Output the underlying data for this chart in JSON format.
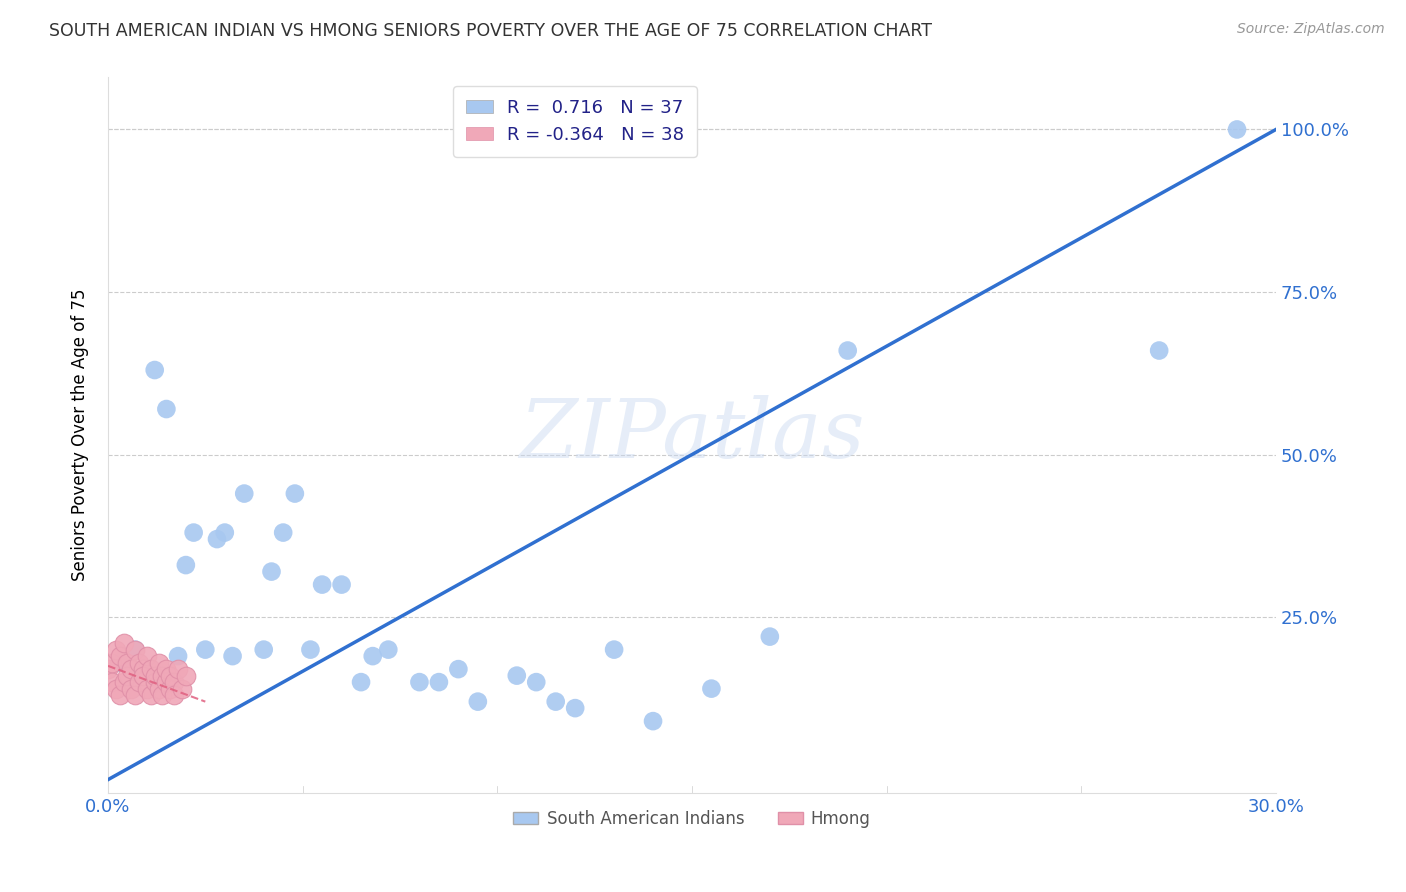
{
  "title": "SOUTH AMERICAN INDIAN VS HMONG SENIORS POVERTY OVER THE AGE OF 75 CORRELATION CHART",
  "source": "Source: ZipAtlas.com",
  "ylabel": "Seniors Poverty Over the Age of 75",
  "xlim": [
    0.0,
    0.3
  ],
  "ylim": [
    -0.02,
    1.08
  ],
  "xticks": [
    0.0,
    0.05,
    0.1,
    0.15,
    0.2,
    0.25,
    0.3
  ],
  "xticklabels": [
    "0.0%",
    "",
    "",
    "",
    "",
    "",
    "30.0%"
  ],
  "ytick_positions": [
    0.0,
    0.25,
    0.5,
    0.75,
    1.0
  ],
  "ytick_labels_right": [
    "",
    "25.0%",
    "50.0%",
    "75.0%",
    "100.0%"
  ],
  "watermark": "ZIPatlas",
  "legend_r1": "R =  0.716   N = 37",
  "legend_r2": "R = -0.364   N = 38",
  "blue_color": "#a8c8f0",
  "pink_color": "#f0a8b8",
  "blue_line_color": "#3070d0",
  "pink_line_color": "#e06080",
  "grid_color": "#cccccc",
  "title_color": "#333333",
  "axis_tick_color": "#3070d0",
  "south_american_x": [
    0.003,
    0.007,
    0.012,
    0.015,
    0.018,
    0.02,
    0.022,
    0.025,
    0.028,
    0.03,
    0.032,
    0.035,
    0.04,
    0.042,
    0.045,
    0.048,
    0.052,
    0.055,
    0.06,
    0.065,
    0.068,
    0.072,
    0.08,
    0.085,
    0.09,
    0.095,
    0.105,
    0.11,
    0.115,
    0.12,
    0.13,
    0.14,
    0.155,
    0.17,
    0.19,
    0.27,
    0.29
  ],
  "south_american_y": [
    0.18,
    0.2,
    0.63,
    0.57,
    0.19,
    0.33,
    0.38,
    0.2,
    0.37,
    0.38,
    0.19,
    0.44,
    0.2,
    0.32,
    0.38,
    0.44,
    0.2,
    0.3,
    0.3,
    0.15,
    0.19,
    0.2,
    0.15,
    0.15,
    0.17,
    0.12,
    0.16,
    0.15,
    0.12,
    0.11,
    0.2,
    0.09,
    0.14,
    0.22,
    0.66,
    0.66,
    1.0
  ],
  "hmong_x": [
    0.0,
    0.001,
    0.001,
    0.002,
    0.002,
    0.003,
    0.003,
    0.004,
    0.004,
    0.005,
    0.005,
    0.006,
    0.006,
    0.007,
    0.007,
    0.008,
    0.008,
    0.009,
    0.009,
    0.01,
    0.01,
    0.011,
    0.011,
    0.012,
    0.012,
    0.013,
    0.013,
    0.014,
    0.014,
    0.015,
    0.015,
    0.016,
    0.016,
    0.017,
    0.017,
    0.018,
    0.019,
    0.02
  ],
  "hmong_y": [
    0.17,
    0.18,
    0.15,
    0.2,
    0.14,
    0.19,
    0.13,
    0.21,
    0.15,
    0.18,
    0.16,
    0.17,
    0.14,
    0.2,
    0.13,
    0.18,
    0.15,
    0.17,
    0.16,
    0.14,
    0.19,
    0.13,
    0.17,
    0.15,
    0.16,
    0.14,
    0.18,
    0.13,
    0.16,
    0.15,
    0.17,
    0.14,
    0.16,
    0.15,
    0.13,
    0.17,
    0.14,
    0.16
  ],
  "blue_line_x": [
    0.0,
    0.3
  ],
  "blue_line_y": [
    0.0,
    1.0
  ],
  "pink_line_x": [
    0.0,
    0.025
  ],
  "pink_line_y": [
    0.175,
    0.12
  ]
}
